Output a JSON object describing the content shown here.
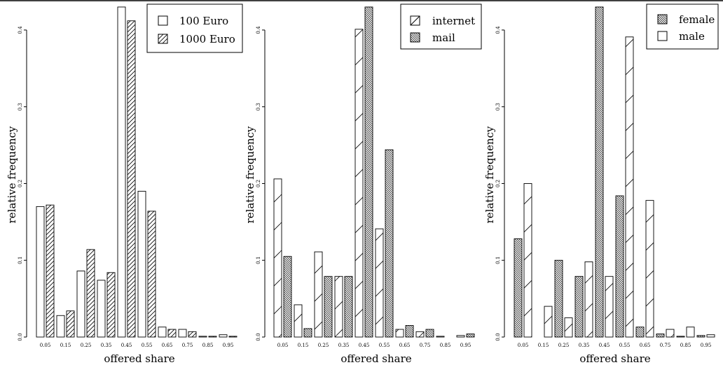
{
  "colors": {
    "ink": "#000000",
    "background": "#ffffff"
  },
  "chart_data": [
    {
      "type": "bar",
      "xlabel": "offered share",
      "ylabel": "relative frequency",
      "ylim": [
        0,
        0.43
      ],
      "yticks": [
        "0.0",
        "0.1",
        "0.2",
        "0.3",
        "0.4"
      ],
      "categories": [
        "0.05",
        "0.15",
        "0.25",
        "0.35",
        "0.45",
        "0.55",
        "0.65",
        "0.75",
        "0.85",
        "0.95"
      ],
      "legend_position": "top-right",
      "series": [
        {
          "name": "100 Euro",
          "pattern": "none",
          "values": [
            0.17,
            0.028,
            0.086,
            0.074,
            0.43,
            0.19,
            0.013,
            0.01,
            0.001,
            0.003
          ]
        },
        {
          "name": "1000 Euro",
          "pattern": "diagonal",
          "values": [
            0.172,
            0.034,
            0.114,
            0.084,
            0.412,
            0.164,
            0.01,
            0.007,
            0.001,
            0.001
          ]
        }
      ]
    },
    {
      "type": "bar",
      "xlabel": "offered share",
      "ylabel": "relative frequency",
      "ylim": [
        0,
        0.43
      ],
      "yticks": [
        "0.0",
        "0.1",
        "0.2",
        "0.3",
        "0.4"
      ],
      "categories": [
        "0.05",
        "0.15",
        "0.25",
        "0.35",
        "0.45",
        "0.55",
        "0.65",
        "0.75",
        "0.85",
        "0.95"
      ],
      "legend_position": "top-right",
      "series": [
        {
          "name": "internet",
          "pattern": "sparse-diagonal",
          "values": [
            0.206,
            0.042,
            0.111,
            0.079,
            0.401,
            0.141,
            0.01,
            0.007,
            0.001,
            0.002
          ]
        },
        {
          "name": "mail",
          "pattern": "dense-diagonal",
          "values": [
            0.105,
            0.011,
            0.079,
            0.079,
            0.43,
            0.244,
            0.015,
            0.01,
            0.0,
            0.004
          ]
        }
      ]
    },
    {
      "type": "bar",
      "xlabel": "offered share",
      "ylabel": "relative frequency",
      "ylim": [
        0,
        0.43
      ],
      "yticks": [
        "0.0",
        "0.1",
        "0.2",
        "0.3",
        "0.4"
      ],
      "categories": [
        "0.05",
        "0.15",
        "0.25",
        "0.35",
        "0.45",
        "0.55",
        "0.65",
        "0.75",
        "0.85",
        "0.95"
      ],
      "legend_position": "top-right",
      "series": [
        {
          "name": "female",
          "pattern": "dense-diagonal",
          "values": [
            0.128,
            0.0,
            0.1,
            0.079,
            0.43,
            0.184,
            0.013,
            0.004,
            0.001,
            0.002
          ]
        },
        {
          "name": "male",
          "pattern": "sparse-diagonal",
          "values": [
            0.2,
            0.04,
            0.025,
            0.098,
            0.079,
            0.391,
            0.178,
            0.01,
            0.013,
            0.003
          ]
        }
      ]
    }
  ]
}
